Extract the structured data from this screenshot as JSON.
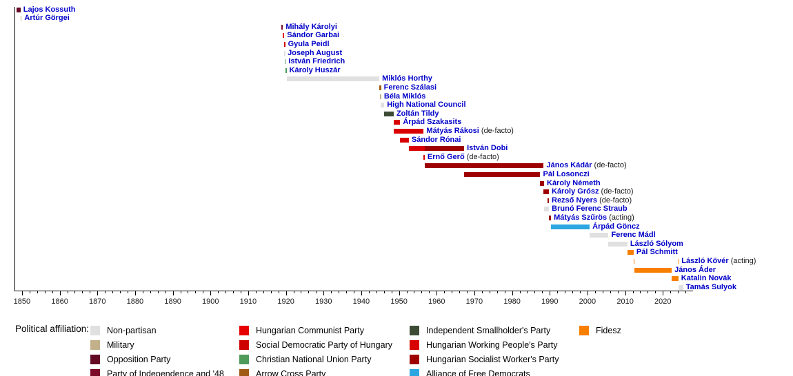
{
  "chart_data": {
    "type": "timeline",
    "axis": {
      "min": 1848,
      "max": 2028,
      "labeled_ticks": [
        1850,
        1860,
        1870,
        1880,
        1890,
        1900,
        1910,
        1920,
        1930,
        1940,
        1950,
        1960,
        1970,
        1980,
        1990,
        2000,
        2010,
        2020
      ],
      "minor_step": 2
    },
    "affiliations": {
      "non_partisan": {
        "label": "Non-partisan",
        "color": "#e0e0e0"
      },
      "military": {
        "label": "Military",
        "color": "#c2b08a"
      },
      "opposition": {
        "label": "Opposition Party",
        "color": "#650a24"
      },
      "independence48": {
        "label": "Party of Independence and '48",
        "color": "#7a0a28"
      },
      "communist": {
        "label": "Hungarian Communist Party",
        "color": "#e60000"
      },
      "socdem": {
        "label": "Social Democratic Party of Hungary",
        "color": "#cf0000"
      },
      "christian_national": {
        "label": "Christian National Union Party",
        "color": "#4e9b5a"
      },
      "arrow_cross": {
        "label": "Arrow Cross Party",
        "color": "#a05c14"
      },
      "smallholders": {
        "label": "Independent Smallholder's Party",
        "color": "#3d4b35"
      },
      "working_peoples": {
        "label": "Hungarian Working People's Party",
        "color": "#d80000"
      },
      "socialist_workers": {
        "label": "Hungarian Socialist Worker's Party",
        "color": "#9e0000"
      },
      "free_democrats": {
        "label": "Alliance of Free Democrats",
        "color": "#2ba6e0"
      },
      "fidesz": {
        "label": "Fidesz",
        "color": "#f87e00"
      }
    },
    "legend": {
      "title": "Political affiliation:",
      "columns": [
        [
          "non_partisan",
          "military",
          "opposition",
          "independence48"
        ],
        [
          "communist",
          "socdem",
          "christian_national",
          "arrow_cross"
        ],
        [
          "smallholders",
          "working_peoples",
          "socialist_workers",
          "free_democrats"
        ],
        [
          "fidesz"
        ]
      ]
    },
    "people": [
      {
        "name": "Lajos Kossuth",
        "suffix": "",
        "segments": [
          {
            "from": 1848.5,
            "to": 1849.6,
            "party": "opposition"
          }
        ]
      },
      {
        "name": "Artúr Görgei",
        "suffix": "",
        "segments": [
          {
            "from": 1849.6,
            "to": 1849.9,
            "party": "military"
          }
        ]
      },
      {
        "name": "Mihály Károlyi",
        "suffix": "",
        "segments": [
          {
            "from": 1918.8,
            "to": 1919.22,
            "party": "independence48"
          }
        ]
      },
      {
        "name": "Sándor Garbai",
        "suffix": "",
        "segments": [
          {
            "from": 1919.22,
            "to": 1919.58,
            "party": "communist"
          }
        ]
      },
      {
        "name": "Gyula Peidl",
        "suffix": "",
        "segments": [
          {
            "from": 1919.58,
            "to": 1919.82,
            "party": "socdem"
          }
        ]
      },
      {
        "name": "Joseph August",
        "suffix": "",
        "segments": [
          {
            "from": 1919.6,
            "to": 1919.72,
            "party": "non_partisan"
          }
        ]
      },
      {
        "name": "István Friedrich",
        "suffix": "",
        "segments": [
          {
            "from": 1919.65,
            "to": 1919.95,
            "party": "christian_national"
          }
        ]
      },
      {
        "name": "Károly Huszár",
        "suffix": "",
        "segments": [
          {
            "from": 1919.9,
            "to": 1920.17,
            "party": "christian_national"
          }
        ]
      },
      {
        "name": "Miklós Horthy",
        "suffix": "",
        "segments": [
          {
            "from": 1920.17,
            "to": 1944.8,
            "party": "non_partisan"
          }
        ]
      },
      {
        "name": "Ferenc Szálasi",
        "suffix": "",
        "segments": [
          {
            "from": 1944.8,
            "to": 1945.25,
            "party": "arrow_cross"
          }
        ]
      },
      {
        "name": "Béla Miklós",
        "suffix": "",
        "segments": [
          {
            "from": 1944.97,
            "to": 1945.3,
            "party": "military"
          }
        ]
      },
      {
        "name": "High National Council",
        "suffix": "",
        "segments": [
          {
            "from": 1945.07,
            "to": 1946.09,
            "party": "non_partisan"
          }
        ]
      },
      {
        "name": "Zoltán Tildy",
        "suffix": "",
        "segments": [
          {
            "from": 1946.09,
            "to": 1948.6,
            "party": "smallholders"
          }
        ]
      },
      {
        "name": "Árpád Szakasits",
        "suffix": "",
        "segments": [
          {
            "from": 1948.6,
            "to": 1950.32,
            "party": "working_peoples"
          }
        ]
      },
      {
        "name": "Mátyás Rákosi",
        "suffix": " (de-facto)",
        "segments": [
          {
            "from": 1948.6,
            "to": 1956.55,
            "party": "working_peoples"
          }
        ]
      },
      {
        "name": "Sándor Rónai",
        "suffix": "",
        "segments": [
          {
            "from": 1950.32,
            "to": 1952.62,
            "party": "working_peoples"
          }
        ]
      },
      {
        "name": "István Dobi",
        "suffix": "",
        "segments": [
          {
            "from": 1952.62,
            "to": 1956.85,
            "party": "working_peoples"
          },
          {
            "from": 1956.85,
            "to": 1967.28,
            "party": "socialist_workers"
          }
        ]
      },
      {
        "name": "Ernő Gerő",
        "suffix": " (de-facto)",
        "segments": [
          {
            "from": 1956.55,
            "to": 1956.82,
            "party": "working_peoples"
          }
        ]
      },
      {
        "name": "János Kádár",
        "suffix": " (de-facto)",
        "segments": [
          {
            "from": 1956.82,
            "to": 1988.39,
            "party": "socialist_workers"
          }
        ]
      },
      {
        "name": "Pál Losonczi",
        "suffix": "",
        "segments": [
          {
            "from": 1967.28,
            "to": 1987.48,
            "party": "socialist_workers"
          }
        ]
      },
      {
        "name": "Károly Németh",
        "suffix": "",
        "segments": [
          {
            "from": 1987.48,
            "to": 1988.49,
            "party": "socialist_workers"
          }
        ]
      },
      {
        "name": "Károly Grósz",
        "suffix": " (de-facto)",
        "segments": [
          {
            "from": 1988.39,
            "to": 1989.77,
            "party": "socialist_workers"
          }
        ]
      },
      {
        "name": "Rezső Nyers",
        "suffix": " (de-facto)",
        "segments": [
          {
            "from": 1989.48,
            "to": 1989.77,
            "party": "socialist_workers"
          }
        ]
      },
      {
        "name": "Brunó Ferenc Straub",
        "suffix": "",
        "segments": [
          {
            "from": 1988.49,
            "to": 1989.8,
            "party": "non_partisan"
          }
        ]
      },
      {
        "name": "Mátyás Szűrös",
        "suffix": " (acting)",
        "segments": [
          {
            "from": 1989.8,
            "to": 1990.33,
            "party": "socialist_workers"
          }
        ]
      },
      {
        "name": "Árpád Göncz",
        "suffix": "",
        "segments": [
          {
            "from": 1990.33,
            "to": 2000.59,
            "party": "free_democrats"
          }
        ]
      },
      {
        "name": "Ferenc Mádl",
        "suffix": "",
        "segments": [
          {
            "from": 2000.59,
            "to": 2005.59,
            "party": "non_partisan"
          }
        ]
      },
      {
        "name": "László Sólyom",
        "suffix": "",
        "segments": [
          {
            "from": 2005.59,
            "to": 2010.59,
            "party": "non_partisan"
          }
        ]
      },
      {
        "name": "Pál Schmitt",
        "suffix": "",
        "segments": [
          {
            "from": 2010.59,
            "to": 2012.25,
            "party": "fidesz"
          }
        ]
      },
      {
        "name": "László Kövér",
        "suffix": " (acting)",
        "segments": [
          {
            "from": 2012.25,
            "to": 2012.37,
            "party": "fidesz"
          },
          {
            "from": 2024.12,
            "to": 2024.2,
            "party": "fidesz"
          }
        ]
      },
      {
        "name": "János Áder",
        "suffix": "",
        "segments": [
          {
            "from": 2012.37,
            "to": 2022.36,
            "party": "fidesz"
          }
        ]
      },
      {
        "name": "Katalin Novák",
        "suffix": "",
        "segments": [
          {
            "from": 2022.36,
            "to": 2024.12,
            "party": "fidesz"
          }
        ]
      },
      {
        "name": "Tamás Sulyok",
        "suffix": "",
        "segments": [
          {
            "from": 2024.2,
            "to": 2025.4,
            "party": "non_partisan"
          }
        ]
      }
    ]
  }
}
